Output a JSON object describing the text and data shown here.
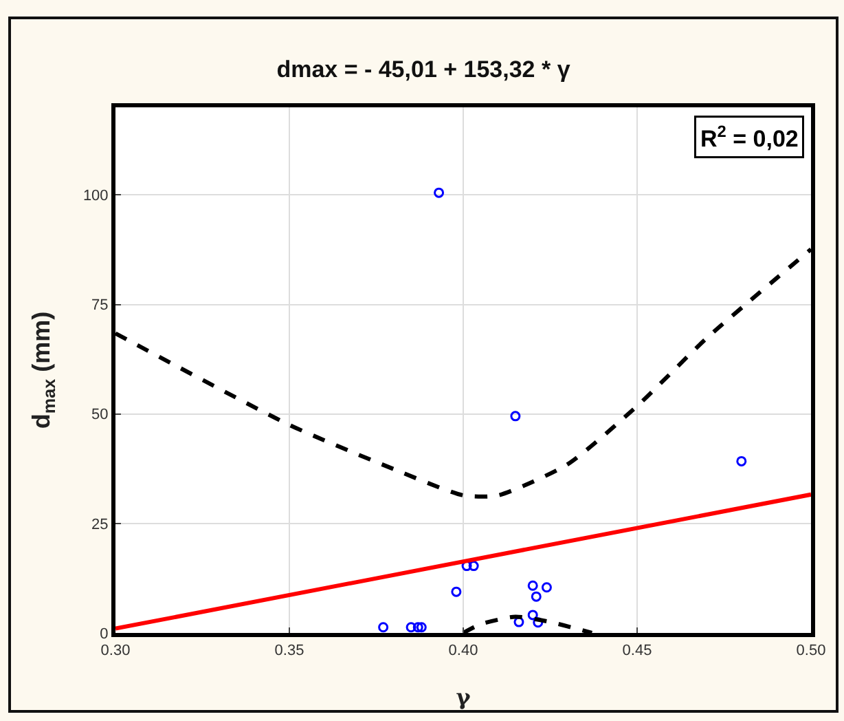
{
  "chart_data": {
    "type": "scatter",
    "title": "dmax = - 45,01 + 153,32 * γ",
    "xlabel": "γ",
    "ylabel": "d$_{max}$ (mm)",
    "annotations": [
      "R$^{2}$ = 0,02"
    ],
    "series": [
      {
        "marker": "circle",
        "color": "#0000ff",
        "x": [
          0.393,
          0.415,
          0.48,
          0.401,
          0.403,
          0.398,
          0.42,
          0.421,
          0.424,
          0.42,
          0.416,
          0.4215,
          0.377,
          0.385,
          0.387,
          0.388
        ],
        "values": [
          100.5,
          49.5,
          39.2,
          15.3,
          15.3,
          9.4,
          10.8,
          8.3,
          10.4,
          4.1,
          2.5,
          2.4,
          1.3,
          1.3,
          1.3,
          1.3
        ]
      },
      {
        "type": "line",
        "marker": "none",
        "color": "#ff0000",
        "line_style": "solid",
        "x": [
          0.3,
          0.5
        ],
        "values": [
          1,
          31.6
        ]
      },
      {
        "type": "line",
        "marker": "none",
        "color": "#000000",
        "line_style": "dashed",
        "x": [
          0.3,
          0.35,
          0.38,
          0.4,
          0.41,
          0.43,
          0.45,
          0.47,
          0.5
        ],
        "values": [
          68.4,
          47.5,
          37.4,
          31.4,
          31.4,
          38.5,
          51.8,
          67.3,
          87.6
        ]
      },
      {
        "type": "line",
        "marker": "none",
        "color": "#000000",
        "line_style": "dashed",
        "x": [
          0.4,
          0.405,
          0.415,
          0.425,
          0.437
        ],
        "values": [
          0,
          2,
          3.7,
          2.5,
          0
        ]
      }
    ],
    "xlim": [
      0.3,
      0.5
    ],
    "xticks": [
      {
        "value": 0.3,
        "label": "0.30"
      },
      {
        "value": 0.35,
        "label": "0.35"
      },
      {
        "value": 0.4,
        "label": "0.40"
      },
      {
        "value": 0.45,
        "label": "0.45"
      },
      {
        "value": 0.5,
        "label": "0.50"
      }
    ],
    "ylim": [
      0,
      120
    ],
    "yticks": [
      0,
      25,
      50,
      75,
      100
    ],
    "grid": true,
    "legend": false
  }
}
